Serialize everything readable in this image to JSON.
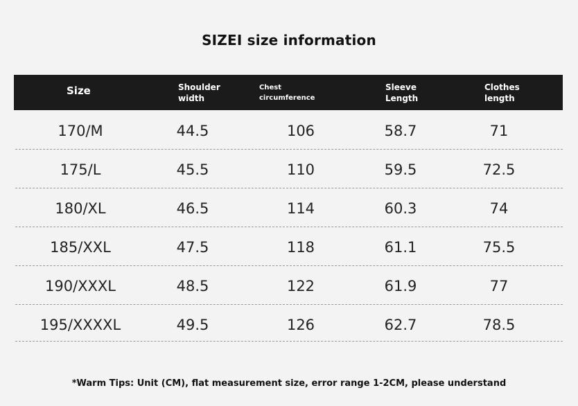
{
  "title": "SIZEI size information",
  "header": {
    "size": "Size",
    "shoulder": [
      "Shoulder",
      "width"
    ],
    "chest": [
      "Chest",
      "circumference"
    ],
    "sleeve": [
      "Sleeve",
      "Length"
    ],
    "clothes": [
      "Clothes",
      "length"
    ]
  },
  "rows": [
    {
      "size": "170/M",
      "shoulder": "44.5",
      "chest": "106",
      "sleeve": "58.7",
      "clothes": "71"
    },
    {
      "size": "175/L",
      "shoulder": "45.5",
      "chest": "110",
      "sleeve": "59.5",
      "clothes": "72.5"
    },
    {
      "size": "180/XL",
      "shoulder": "46.5",
      "chest": "114",
      "sleeve": "60.3",
      "clothes": "74"
    },
    {
      "size": "185/XXL",
      "shoulder": "47.5",
      "chest": "118",
      "sleeve": "61.1",
      "clothes": "75.5"
    },
    {
      "size": "190/XXXL",
      "shoulder": "48.5",
      "chest": "122",
      "sleeve": "61.9",
      "clothes": "77"
    },
    {
      "size": "195/XXXXL",
      "shoulder": "49.5",
      "chest": "126",
      "sleeve": "62.7",
      "clothes": "78.5"
    }
  ],
  "tips": "*Warm Tips: Unit (CM), flat measurement size, error range 1-2CM, please understand",
  "colors": {
    "background": "#f3f3f3",
    "header_bg": "#1b1b1b",
    "header_text": "#ffffff",
    "divider": "#9a9a9a"
  }
}
